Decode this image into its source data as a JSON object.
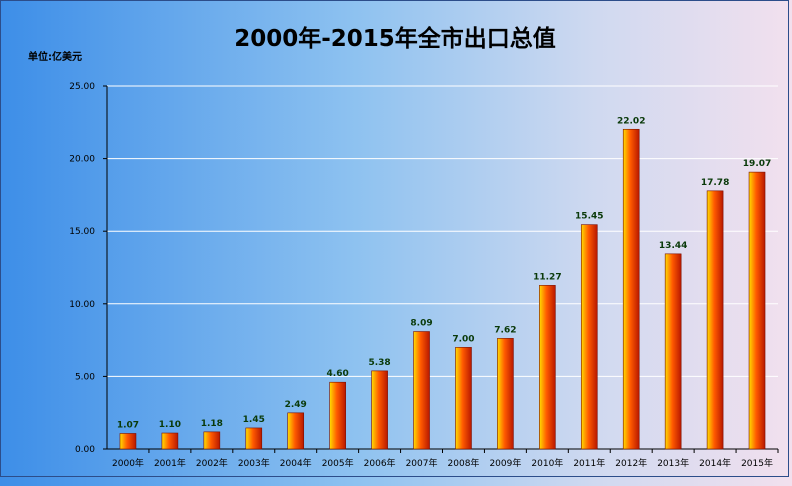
{
  "chart_data": {
    "type": "bar",
    "title": "2000年-2015年全市出口总值",
    "unit_label": "单位:亿美元",
    "categories": [
      "2000年",
      "2001年",
      "2002年",
      "2003年",
      "2004年",
      "2005年",
      "2006年",
      "2007年",
      "2008年",
      "2009年",
      "2010年",
      "2011年",
      "2012年",
      "2013年",
      "2014年",
      "2015年"
    ],
    "values": [
      1.07,
      1.1,
      1.18,
      1.45,
      2.49,
      4.6,
      5.38,
      8.09,
      7.0,
      7.62,
      11.27,
      15.45,
      22.02,
      13.44,
      17.78,
      19.07
    ],
    "data_labels": [
      "1.07",
      "1.10",
      "1.18",
      "1.45",
      "2.49",
      "4.60",
      "5.38",
      "8.09",
      "7.00",
      "7.62",
      "11.27",
      "15.45",
      "22.02",
      "13.44",
      "17.78",
      "19.07"
    ],
    "ylim": [
      0,
      25
    ],
    "yticks": [
      0,
      5,
      10,
      15,
      20,
      25
    ],
    "ytick_labels": [
      "0.00",
      "5.00",
      "10.00",
      "15.00",
      "20.00",
      "25.00"
    ],
    "grid": true,
    "legend": "none",
    "colors": {
      "bar_light": "#ffdd00",
      "bar_mid": "#ff5a00",
      "bar_dark": "#b81800",
      "background_left": "#3d8ee8",
      "background_right": "#f2e0ee",
      "gridline": "#ffffff",
      "data_label": "#0a3a0a"
    }
  }
}
